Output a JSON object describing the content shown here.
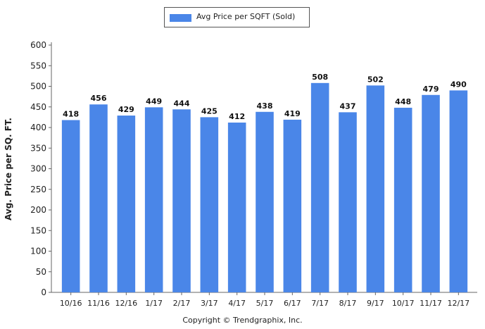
{
  "chart_data": {
    "type": "bar",
    "ylabel": "Avg. Price per SQ. FT.",
    "ylim": [
      0,
      600
    ],
    "yticks": [
      0,
      50,
      100,
      150,
      200,
      250,
      300,
      350,
      400,
      450,
      500,
      550,
      600
    ],
    "categories": [
      "10/16",
      "11/16",
      "12/16",
      "1/17",
      "2/17",
      "3/17",
      "4/17",
      "5/17",
      "6/17",
      "7/17",
      "8/17",
      "9/17",
      "10/17",
      "11/17",
      "12/17"
    ],
    "series": [
      {
        "name": "Avg Price per SQFT (Sold)",
        "color": "#4a86e8",
        "values": [
          418,
          456,
          429,
          449,
          444,
          425,
          412,
          438,
          419,
          508,
          437,
          502,
          448,
          479,
          490
        ]
      }
    ],
    "data_labels": true,
    "grid": "none",
    "legend_position": "top-center"
  },
  "legend": {
    "label": "Avg Price per SQFT (Sold)"
  },
  "footer": {
    "copyright": "Copyright © Trendgraphix, Inc."
  }
}
